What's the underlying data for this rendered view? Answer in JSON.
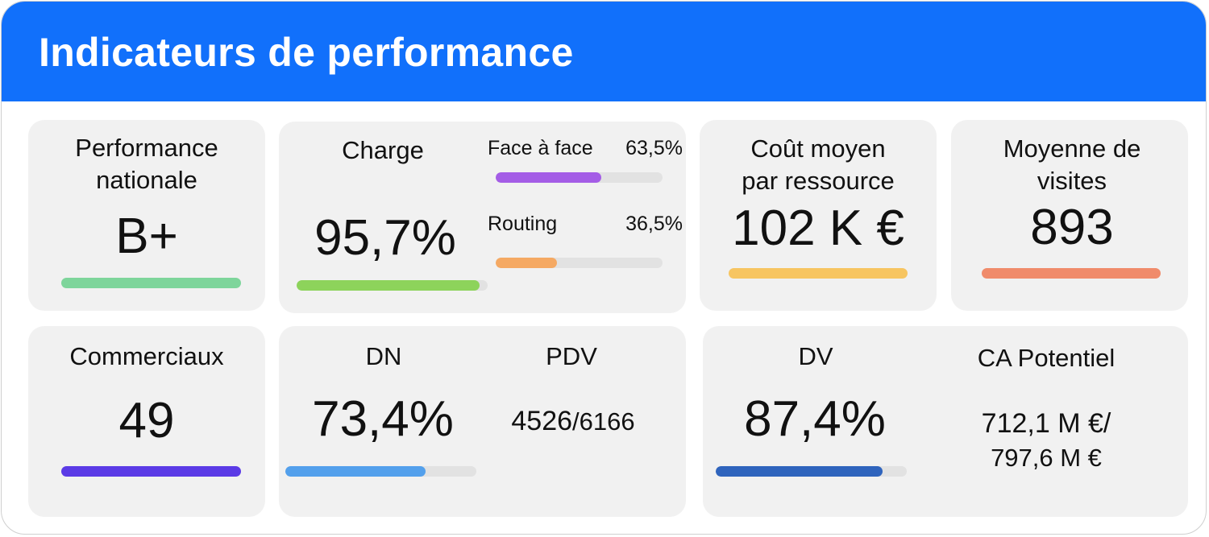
{
  "header": {
    "title": "Indicateurs de performance",
    "color": "#1170fb"
  },
  "cards": {
    "performance": {
      "label": "Performance\nnationale",
      "value": "B+",
      "bar_color": "#7ed59b"
    },
    "charge": {
      "label": "Charge",
      "value": "95,7%",
      "progress": 0.957,
      "bar_color": "#8dd35b",
      "face": {
        "label": "Face à face",
        "value": "63,5%",
        "progress": 0.635,
        "color": "#a45de6"
      },
      "routing": {
        "label": "Routing",
        "value": "36,5%",
        "progress": 0.365,
        "color": "#f5a963"
      }
    },
    "cout": {
      "label": "Coût moyen\npar ressource",
      "value": "102 K €",
      "bar_color": "#f7c561"
    },
    "visites": {
      "label": "Moyenne de\nvisites",
      "value": "893",
      "bar_color": "#f08b6b"
    },
    "commerciaux": {
      "label": "Commerciaux",
      "value": "49",
      "bar_color": "#5b3be6"
    },
    "dn": {
      "label": "DN",
      "value": "73,4%",
      "progress": 0.734,
      "bar_color": "#53a0ec"
    },
    "pdv": {
      "label": "PDV",
      "numerator": "4526",
      "denominator": "/6166"
    },
    "dv": {
      "label": "DV",
      "value": "87,4%",
      "progress": 0.874,
      "bar_color": "#2f64bd"
    },
    "ca": {
      "label": "CA Potentiel",
      "line1": "712,1 M €/",
      "line2": "797,6 M €"
    }
  }
}
